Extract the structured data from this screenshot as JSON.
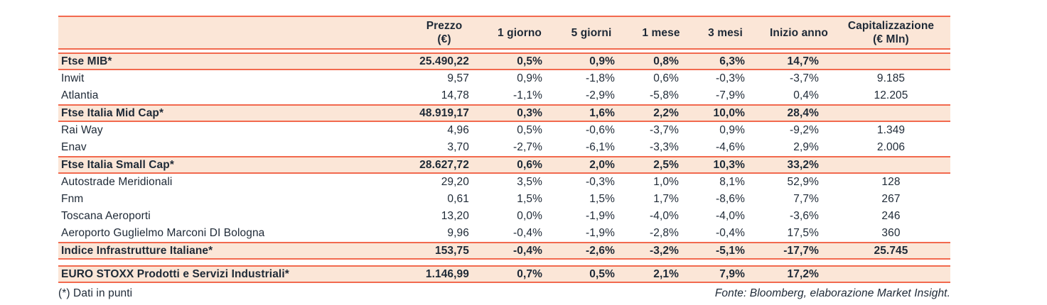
{
  "colors": {
    "accent": "#F2694E",
    "row_highlight": "#FBE6D7",
    "text": "#1E2936",
    "background": "#FFFFFF"
  },
  "table": {
    "columns": [
      {
        "id": "name",
        "line1": "",
        "line2": ""
      },
      {
        "id": "prezzo",
        "line1": "Prezzo",
        "line2": "(€)"
      },
      {
        "id": "d1",
        "line1": "1 giorno",
        "line2": ""
      },
      {
        "id": "d5",
        "line1": "5 giorni",
        "line2": ""
      },
      {
        "id": "m1",
        "line1": "1 mese",
        "line2": ""
      },
      {
        "id": "m3",
        "line1": "3 mesi",
        "line2": ""
      },
      {
        "id": "ytd",
        "line1": "Inizio anno",
        "line2": ""
      },
      {
        "id": "cap",
        "line1": "Capitalizzazione",
        "line2": "(€ Mln)"
      }
    ],
    "rows": [
      {
        "type": "index",
        "name": "Ftse MIB*",
        "prezzo": "25.490,22",
        "d1": "0,5%",
        "d5": "0,9%",
        "m1": "0,8%",
        "m3": "6,3%",
        "ytd": "14,7%",
        "cap": ""
      },
      {
        "type": "stock",
        "name": "Inwit",
        "prezzo": "9,57",
        "d1": "0,9%",
        "d5": "-1,8%",
        "m1": "0,6%",
        "m3": "-0,3%",
        "ytd": "-3,7%",
        "cap": "9.185"
      },
      {
        "type": "stock",
        "name": "Atlantia",
        "prezzo": "14,78",
        "d1": "-1,1%",
        "d5": "-2,9%",
        "m1": "-5,8%",
        "m3": "-7,9%",
        "ytd": "0,4%",
        "cap": "12.205"
      },
      {
        "type": "index",
        "name": "Ftse Italia Mid Cap*",
        "prezzo": "48.919,17",
        "d1": "0,3%",
        "d5": "1,6%",
        "m1": "2,2%",
        "m3": "10,0%",
        "ytd": "28,4%",
        "cap": ""
      },
      {
        "type": "stock",
        "name": "Rai Way",
        "prezzo": "4,96",
        "d1": "0,5%",
        "d5": "-0,6%",
        "m1": "-3,7%",
        "m3": "0,9%",
        "ytd": "-9,2%",
        "cap": "1.349"
      },
      {
        "type": "stock",
        "name": "Enav",
        "prezzo": "3,70",
        "d1": "-2,7%",
        "d5": "-6,1%",
        "m1": "-3,3%",
        "m3": "-4,6%",
        "ytd": "2,9%",
        "cap": "2.006"
      },
      {
        "type": "index",
        "name": "Ftse Italia Small Cap*",
        "prezzo": "28.627,72",
        "d1": "0,6%",
        "d5": "2,0%",
        "m1": "2,5%",
        "m3": "10,3%",
        "ytd": "33,2%",
        "cap": ""
      },
      {
        "type": "stock",
        "name": "Autostrade Meridionali",
        "prezzo": "29,20",
        "d1": "3,5%",
        "d5": "-0,3%",
        "m1": "1,0%",
        "m3": "8,1%",
        "ytd": "52,9%",
        "cap": "128"
      },
      {
        "type": "stock",
        "name": "Fnm",
        "prezzo": "0,61",
        "d1": "1,5%",
        "d5": "1,5%",
        "m1": "1,7%",
        "m3": "-8,6%",
        "ytd": "7,7%",
        "cap": "267"
      },
      {
        "type": "stock",
        "name": "Toscana Aeroporti",
        "prezzo": "13,20",
        "d1": "0,0%",
        "d5": "-1,9%",
        "m1": "-4,0%",
        "m3": "-4,0%",
        "ytd": "-3,6%",
        "cap": "246"
      },
      {
        "type": "stock",
        "name": "Aeroporto Guglielmo Marconi DI Bologna",
        "prezzo": "9,96",
        "d1": "-0,4%",
        "d5": "-1,9%",
        "m1": "-2,8%",
        "m3": "-0,4%",
        "ytd": "17,5%",
        "cap": "360"
      },
      {
        "type": "index",
        "gap_after": true,
        "name": "Indice Infrastrutture Italiane*",
        "prezzo": "153,75",
        "d1": "-0,4%",
        "d5": "-2,6%",
        "m1": "-3,2%",
        "m3": "-5,1%",
        "ytd": "-17,7%",
        "cap": "25.745"
      },
      {
        "type": "index",
        "name": "EURO STOXX Prodotti e Servizi Industriali*",
        "prezzo": "1.146,99",
        "d1": "0,7%",
        "d5": "0,5%",
        "m1": "2,1%",
        "m3": "7,9%",
        "ytd": "17,2%",
        "cap": ""
      }
    ],
    "footnote": "(*) Dati in punti",
    "source": "Fonte: Bloomberg, elaborazione Market Insight."
  }
}
